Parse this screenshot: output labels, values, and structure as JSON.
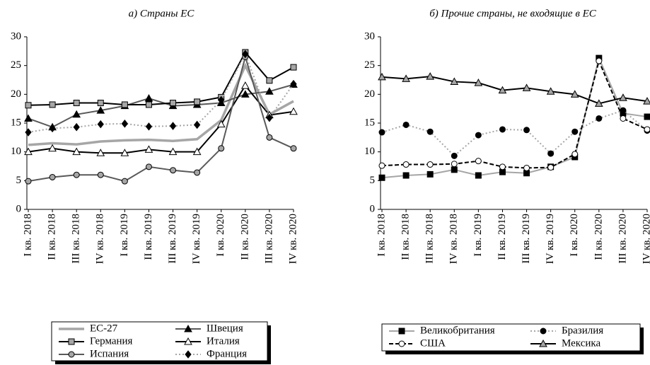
{
  "chart_data": [
    {
      "type": "line",
      "title": "а) Страны ЕС",
      "categories": [
        "I кв. 2018",
        "II кв. 2018",
        "III кв. 2018",
        "IV кв. 2018",
        "I кв. 2019",
        "II кв. 2019",
        "III кв. 2019",
        "IV кв. 2019",
        "I кв. 2020",
        "II кв. 2020",
        "III кв. 2020",
        "IV кв. 2020"
      ],
      "ylim": [
        0,
        30
      ],
      "yticks": [
        0,
        5,
        10,
        15,
        20,
        25,
        30
      ],
      "grid": false,
      "legend": "bottom",
      "series": [
        {
          "name": "ЕС-27",
          "color": "#a6a6a6",
          "marker": "none",
          "marker_fill": "#a6a6a6",
          "line_style": "thick",
          "values": [
            11.2,
            11.5,
            11.3,
            11.8,
            12.0,
            12.1,
            11.9,
            12.2,
            15.5,
            25.0,
            16.5,
            18.8
          ]
        },
        {
          "name": "Швеция",
          "color": "#595959",
          "marker": "triangle",
          "marker_fill": "#000000",
          "line_style": "solid",
          "values": [
            15.8,
            14.3,
            16.5,
            17.2,
            18.0,
            19.3,
            18.0,
            18.2,
            18.5,
            20.0,
            20.5,
            21.7
          ]
        },
        {
          "name": "Германия",
          "color": "#000000",
          "marker": "square",
          "marker_fill": "#a6a6a6",
          "line_style": "solid",
          "values": [
            18.1,
            18.2,
            18.5,
            18.5,
            18.2,
            18.2,
            18.5,
            18.7,
            19.5,
            27.3,
            22.4,
            24.7
          ]
        },
        {
          "name": "Италия",
          "color": "#000000",
          "marker": "triangle",
          "marker_fill": "#ffffff",
          "line_style": "solid",
          "values": [
            10.0,
            10.6,
            10.0,
            9.8,
            9.8,
            10.4,
            10.0,
            10.0,
            14.8,
            21.5,
            16.4,
            17.0
          ]
        },
        {
          "name": "Испания",
          "color": "#595959",
          "marker": "circle",
          "marker_fill": "#a6a6a6",
          "line_style": "solid",
          "values": [
            4.9,
            5.6,
            6.0,
            6.0,
            4.9,
            7.4,
            6.8,
            6.4,
            10.6,
            26.5,
            12.5,
            10.6
          ]
        },
        {
          "name": "Франция",
          "color": "#a6a6a6",
          "marker": "diamond",
          "marker_fill": "#000000",
          "line_style": "dotted",
          "values": [
            13.4,
            14.1,
            14.3,
            14.8,
            14.9,
            14.4,
            14.5,
            14.7,
            19.0,
            27.0,
            15.9,
            21.8
          ]
        }
      ]
    },
    {
      "type": "line",
      "title": "б) Прочие страны, не входящие в ЕС",
      "categories": [
        "I кв. 2018",
        "II кв. 2018",
        "III кв. 2018",
        "IV кв. 2018",
        "I кв. 2019",
        "II кв. 2019",
        "III кв. 2019",
        "IV кв. 2019",
        "I кв. 2020",
        "II кв. 2020",
        "III кв. 2020",
        "IV кв. 2020"
      ],
      "ylim": [
        0,
        30
      ],
      "yticks": [
        0,
        5,
        10,
        15,
        20,
        25,
        30
      ],
      "grid": false,
      "legend": "bottom",
      "series": [
        {
          "name": "Великобритания",
          "color": "#a6a6a6",
          "marker": "square",
          "marker_fill": "#000000",
          "line_style": "solid",
          "values": [
            5.5,
            5.9,
            6.1,
            6.9,
            5.9,
            6.5,
            6.3,
            7.4,
            9.1,
            26.3,
            16.7,
            16.1
          ]
        },
        {
          "name": "Бразилия",
          "color": "#a6a6a6",
          "marker": "circle",
          "marker_fill": "#000000",
          "line_style": "dotted",
          "values": [
            13.4,
            14.7,
            13.5,
            9.3,
            12.9,
            13.9,
            13.8,
            9.7,
            13.5,
            15.8,
            17.2,
            13.7
          ]
        },
        {
          "name": "США",
          "color": "#000000",
          "marker": "circle",
          "marker_fill": "#ffffff",
          "line_style": "dashed",
          "values": [
            7.6,
            7.8,
            7.8,
            7.9,
            8.4,
            7.4,
            7.2,
            7.3,
            9.6,
            25.8,
            15.8,
            13.9
          ]
        },
        {
          "name": "Мексика",
          "color": "#000000",
          "marker": "triangle",
          "marker_fill": "#a6a6a6",
          "line_style": "solid",
          "values": [
            23.0,
            22.7,
            23.1,
            22.2,
            22.0,
            20.7,
            21.1,
            20.5,
            20.0,
            18.4,
            19.4,
            18.8
          ]
        }
      ]
    }
  ]
}
